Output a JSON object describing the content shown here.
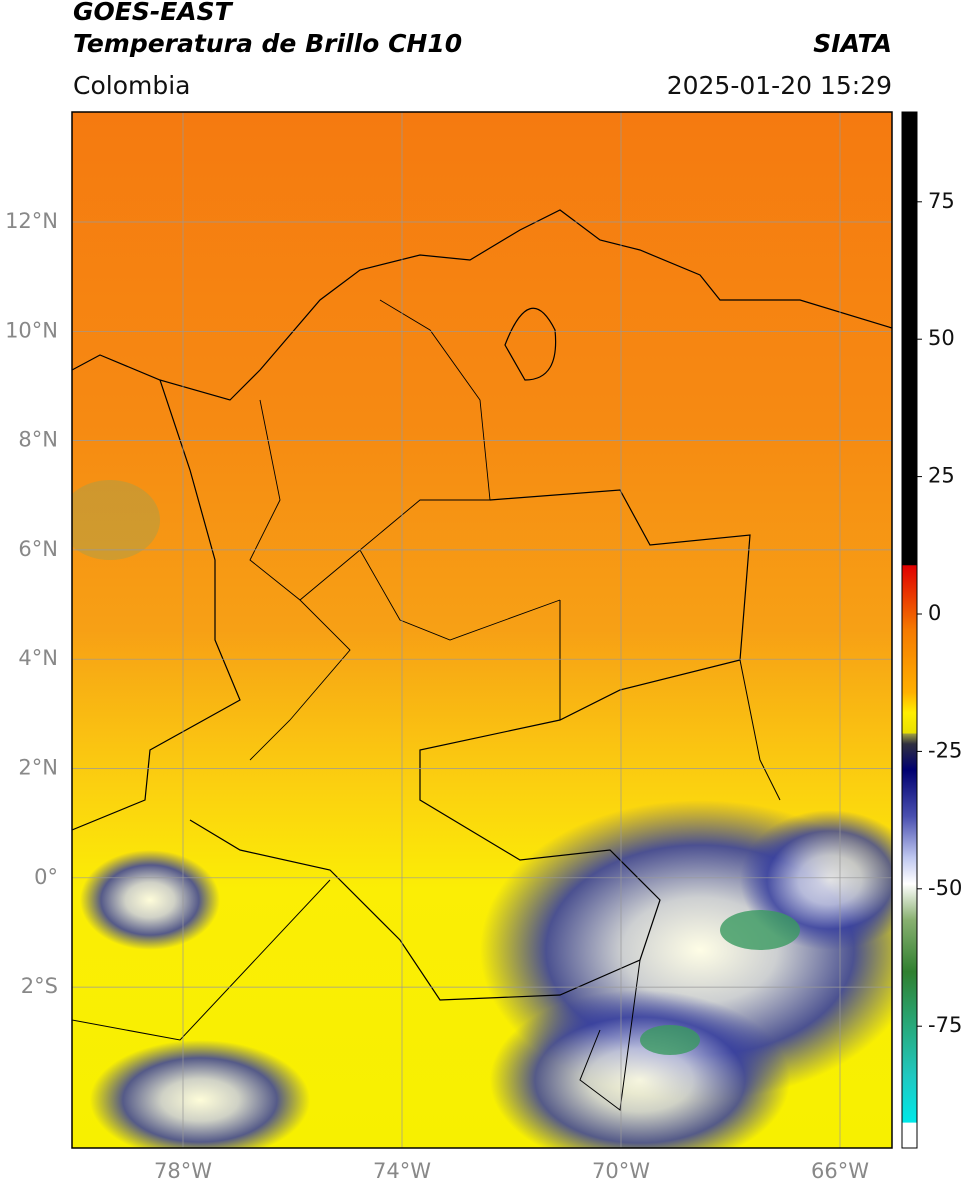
{
  "header": {
    "title": "GOES-EAST",
    "subtitle": "Temperatura de Brillo CH10",
    "source": "SIATA",
    "region": "Colombia",
    "datetime": "2025-01-20 15:29"
  },
  "map": {
    "lat_ticks": [
      "12°N",
      "10°N",
      "8°N",
      "6°N",
      "4°N",
      "2°N",
      "0°",
      "2°S"
    ],
    "lon_ticks": [
      "78°W",
      "74°W",
      "70°W",
      "66°W"
    ]
  },
  "colorbar": {
    "ticks": [
      75,
      50,
      25,
      0,
      -25,
      -50,
      -75
    ]
  }
}
